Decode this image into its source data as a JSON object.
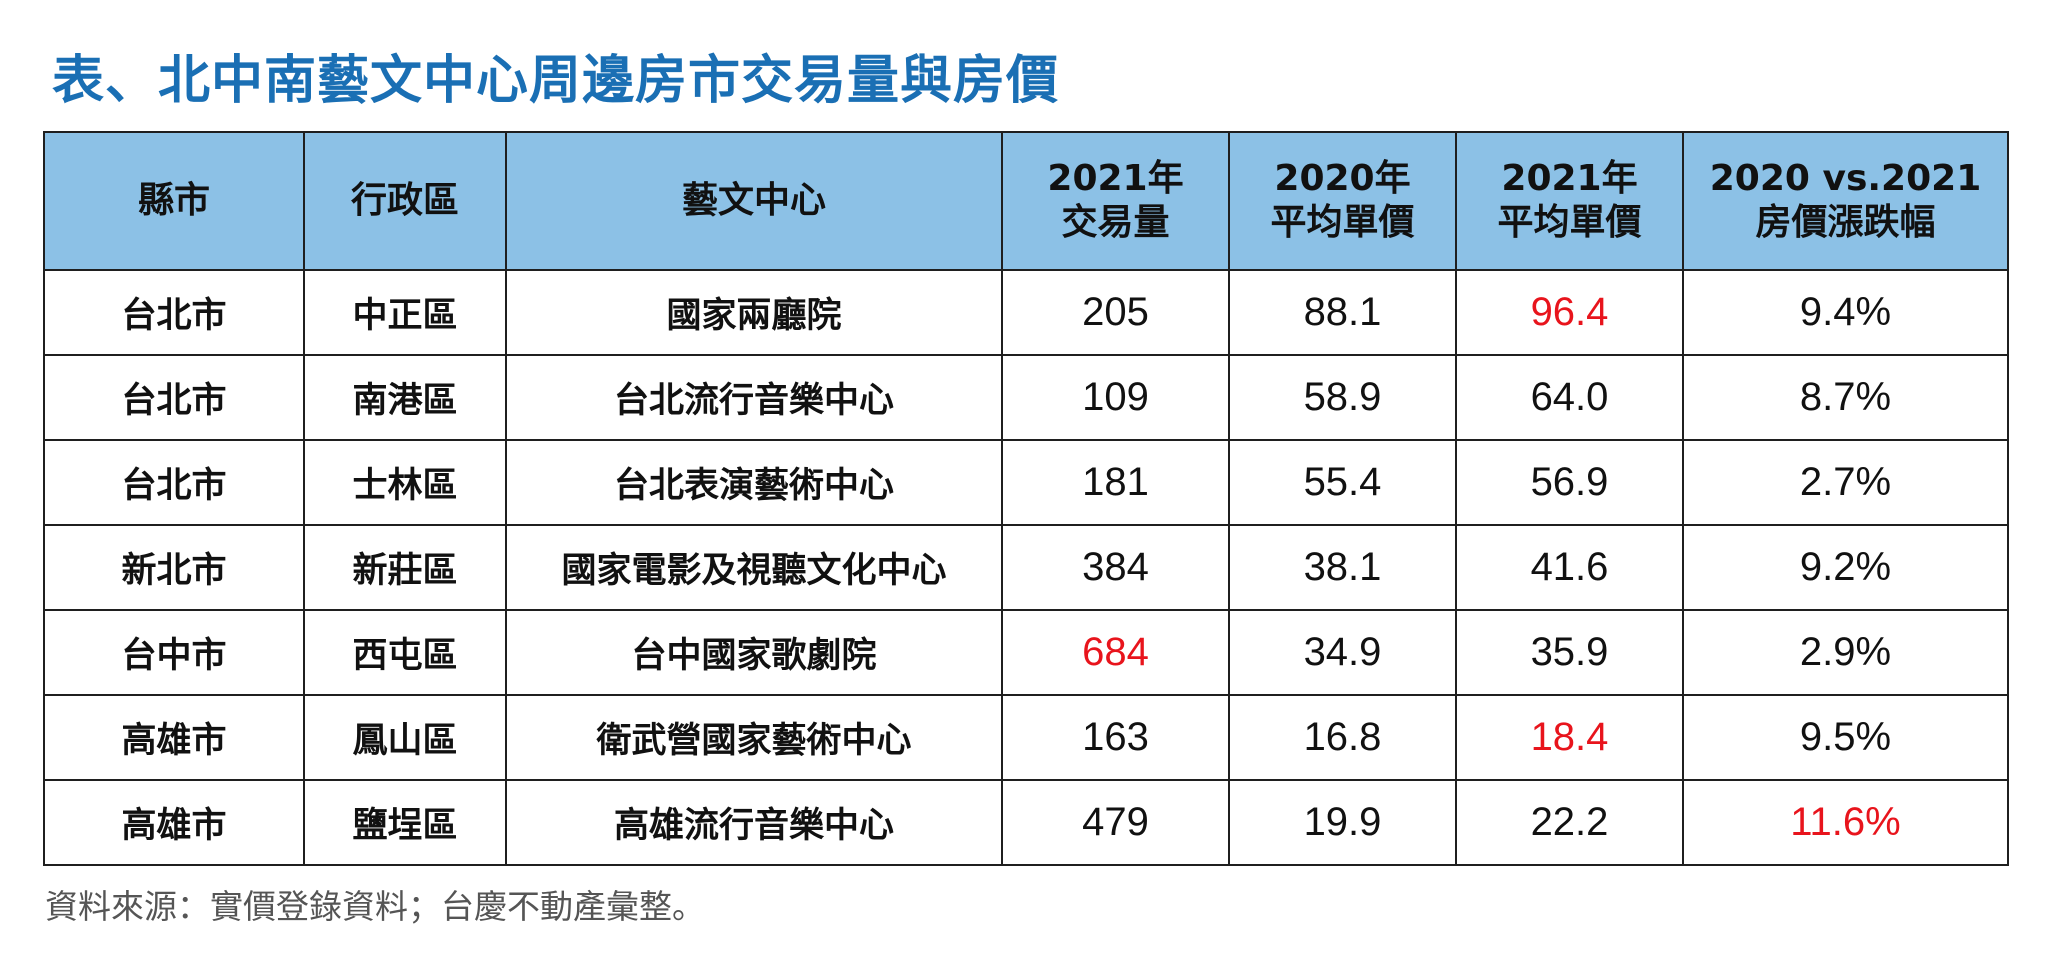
{
  "chart_data": {
    "type": "table",
    "title": "表、北中南藝文中心周邊房市交易量與房價",
    "columns": [
      [
        "縣市"
      ],
      [
        "行政區"
      ],
      [
        "藝文中心"
      ],
      [
        "2021年",
        "交易量"
      ],
      [
        "2020年",
        "平均單價"
      ],
      [
        "2021年",
        "平均單價"
      ],
      [
        "2020 vs.2021",
        "房價漲跌幅"
      ]
    ],
    "rows": [
      {
        "county": "台北市",
        "district": "中正區",
        "center": "國家兩廳院",
        "volume_2021": "205",
        "price_2020": "88.1",
        "price_2021": "96.4",
        "change": "9.4%",
        "highlight": [
          "price_2021"
        ]
      },
      {
        "county": "台北市",
        "district": "南港區",
        "center": "台北流行音樂中心",
        "volume_2021": "109",
        "price_2020": "58.9",
        "price_2021": "64.0",
        "change": "8.7%",
        "highlight": []
      },
      {
        "county": "台北市",
        "district": "士林區",
        "center": "台北表演藝術中心",
        "volume_2021": "181",
        "price_2020": "55.4",
        "price_2021": "56.9",
        "change": "2.7%",
        "highlight": []
      },
      {
        "county": "新北市",
        "district": "新莊區",
        "center": "國家電影及視聽文化中心",
        "volume_2021": "384",
        "price_2020": "38.1",
        "price_2021": "41.6",
        "change": "9.2%",
        "highlight": []
      },
      {
        "county": "台中市",
        "district": "西屯區",
        "center": "台中國家歌劇院",
        "volume_2021": "684",
        "price_2020": "34.9",
        "price_2021": "35.9",
        "change": "2.9%",
        "highlight": [
          "volume_2021"
        ]
      },
      {
        "county": "高雄市",
        "district": "鳳山區",
        "center": "衛武營國家藝術中心",
        "volume_2021": "163",
        "price_2020": "16.8",
        "price_2021": "18.4",
        "change": "9.5%",
        "highlight": [
          "price_2021"
        ]
      },
      {
        "county": "高雄市",
        "district": "鹽埕區",
        "center": "高雄流行音樂中心",
        "volume_2021": "479",
        "price_2020": "19.9",
        "price_2021": "22.2",
        "change": "11.6%",
        "highlight": [
          "change"
        ]
      }
    ],
    "source": "資料來源：實價登錄資料；台慶不動產彙整。"
  },
  "colors": {
    "title": "#1a6fb4",
    "header_bg": "#8cc1e6",
    "highlight": "#e8141c",
    "border": "#1f1f1f",
    "source_text": "#555555"
  }
}
